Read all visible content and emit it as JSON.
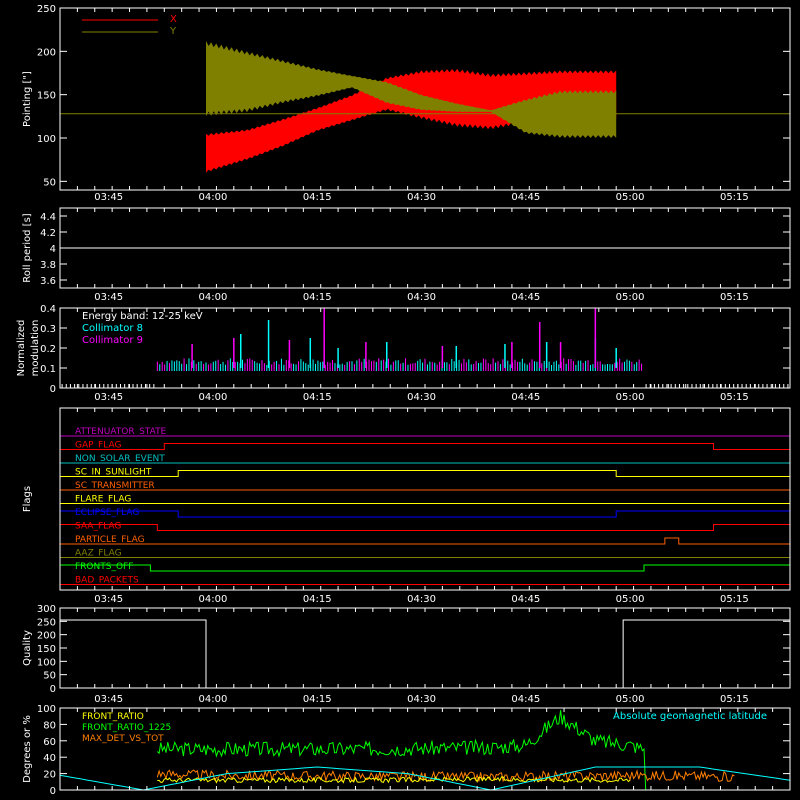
{
  "time_axis": {
    "start": "03:38",
    "end": "05:23",
    "tick_labels": [
      "03:45",
      "04:00",
      "04:15",
      "04:30",
      "04:45",
      "05:00",
      "05:15"
    ]
  },
  "chart_data": [
    {
      "id": "pointing",
      "type": "area",
      "ylabel": "Pointing [\"]",
      "ylim": [
        40,
        250
      ],
      "yticks": [
        50,
        100,
        150,
        200,
        250
      ],
      "legend": [
        {
          "name": "X",
          "color": "#ff0000"
        },
        {
          "name": "Y",
          "color": "#808000"
        }
      ],
      "series": [
        {
          "name": "X",
          "color": "#ff0000",
          "x": [
            "03:59",
            "04:05",
            "04:10",
            "04:15",
            "04:20",
            "04:25",
            "04:30",
            "04:35",
            "04:40",
            "04:45",
            "04:50",
            "04:58"
          ],
          "upper": [
            105,
            110,
            122,
            135,
            150,
            170,
            178,
            180,
            174,
            176,
            178,
            178
          ],
          "lower": [
            60,
            75,
            90,
            108,
            120,
            132,
            122,
            113,
            110,
            117,
            122,
            122
          ]
        },
        {
          "name": "Y",
          "color": "#808000",
          "x": [
            "03:59",
            "04:05",
            "04:10",
            "04:15",
            "04:20",
            "04:25",
            "04:30",
            "04:35",
            "04:40",
            "04:45",
            "04:50",
            "04:58"
          ],
          "upper": [
            212,
            200,
            190,
            180,
            172,
            165,
            150,
            140,
            132,
            145,
            155,
            155
          ],
          "lower": [
            125,
            130,
            140,
            148,
            158,
            140,
            132,
            130,
            130,
            105,
            100,
            100
          ]
        }
      ],
      "reference_line": {
        "y": 128,
        "color": "#808000"
      }
    },
    {
      "id": "roll-period",
      "type": "line",
      "ylabel": "Roll period [s]",
      "ylim": [
        3.5,
        4.5
      ],
      "yticks": [
        3.6,
        3.8,
        4.0,
        4.2,
        4.4
      ],
      "series": [
        {
          "name": "",
          "color": "#ffffff",
          "x": [
            "03:38",
            "05:23"
          ],
          "values": [
            4.0,
            4.0
          ]
        }
      ]
    },
    {
      "id": "modulation",
      "type": "line",
      "ylabel_lines": [
        "Normalized",
        "modulation"
      ],
      "ylim": [
        0.0,
        0.4
      ],
      "yticks": [
        0.0,
        0.1,
        0.2,
        0.3,
        0.4
      ],
      "annotations": [
        "Energy band: 12-25 keV"
      ],
      "legend": [
        {
          "name": "Collimator 8",
          "color": "#00ffff"
        },
        {
          "name": "Collimator 9",
          "color": "#ff00ff"
        }
      ],
      "data_span": [
        "03:52",
        "05:02"
      ],
      "baseline": 0.1,
      "spikes": [
        {
          "series": "Collimator 8",
          "x": [
            "04:04",
            "04:08",
            "04:14",
            "04:18",
            "04:25",
            "04:35",
            "04:42",
            "04:48",
            "04:55",
            "04:58"
          ],
          "values": [
            0.27,
            0.34,
            0.25,
            0.2,
            0.23,
            0.21,
            0.22,
            0.23,
            0.25,
            0.2
          ]
        },
        {
          "series": "Collimator 9",
          "x": [
            "03:57",
            "04:03",
            "04:11",
            "04:16",
            "04:22",
            "04:33",
            "04:43",
            "04:47",
            "04:50",
            "04:55"
          ],
          "values": [
            0.22,
            0.25,
            0.24,
            0.4,
            0.23,
            0.21,
            0.23,
            0.33,
            0.23,
            0.4
          ]
        }
      ]
    },
    {
      "id": "flags",
      "type": "line",
      "ylabel": "Flags",
      "flags": [
        {
          "name": "ATTENUATOR_STATE",
          "color": "#c000c0",
          "changes": []
        },
        {
          "name": "GAP_FLAG",
          "color": "#ff0000",
          "changes": [
            [
              "03:53",
              "05:12",
              "high"
            ]
          ]
        },
        {
          "name": "NON_SOLAR_EVENT",
          "color": "#00c0c0",
          "changes": []
        },
        {
          "name": "SC_IN_SUNLIGHT",
          "color": "#ffff00",
          "changes": [
            [
              "03:55",
              "04:58",
              "high"
            ]
          ]
        },
        {
          "name": "SC_TRANSMITTER",
          "color": "#ff6000",
          "changes": []
        },
        {
          "name": "FLARE_FLAG",
          "color": "#ffff00",
          "changes": []
        },
        {
          "name": "ECLIPSE_FLAG",
          "color": "#0000ff",
          "changes": [
            [
              "03:38",
              "03:55",
              "high"
            ],
            [
              "04:58",
              "05:23",
              "high"
            ]
          ]
        },
        {
          "name": "SAA_FLAG",
          "color": "#ff0000",
          "changes": [
            [
              "03:38",
              "03:52",
              "high"
            ],
            [
              "05:12",
              "05:23",
              "high"
            ]
          ]
        },
        {
          "name": "PARTICLE_FLAG",
          "color": "#ff6000",
          "changes": [
            [
              "05:05",
              "05:07",
              "high"
            ]
          ]
        },
        {
          "name": "AAZ_FLAG",
          "color": "#808000",
          "changes": []
        },
        {
          "name": "FRONTS_OFF",
          "color": "#00ff00",
          "changes": [
            [
              "03:38",
              "03:51",
              "high"
            ],
            [
              "05:02",
              "05:23",
              "high"
            ]
          ]
        },
        {
          "name": "BAD_PACKETS",
          "color": "#ff0000",
          "changes": []
        }
      ]
    },
    {
      "id": "quality",
      "type": "line",
      "ylabel": "Quality",
      "ylim": [
        0,
        300
      ],
      "yticks": [
        0,
        50,
        100,
        150,
        200,
        250,
        300
      ],
      "series": [
        {
          "name": "",
          "color": "#ffffff",
          "x": [
            "03:38",
            "03:59",
            "03:59",
            "04:59",
            "04:59",
            "05:23"
          ],
          "values": [
            255,
            255,
            0,
            0,
            255,
            255
          ]
        }
      ]
    },
    {
      "id": "ratios",
      "type": "line",
      "ylabel": "Degrees or %",
      "ylim": [
        0,
        100
      ],
      "yticks": [
        0,
        20,
        40,
        60,
        80,
        100
      ],
      "legend": [
        {
          "name": "FRONT_RATIO",
          "color": "#ffff00"
        },
        {
          "name": "FRONT_RATIO_1225",
          "color": "#00ff00"
        },
        {
          "name": "MAX_DET_VS_TOT",
          "color": "#ff8000"
        }
      ],
      "right_legend": {
        "name": "Absolute geomagnetic latitude",
        "color": "#00ffff"
      },
      "series": [
        {
          "name": "FRONT_RATIO_1225",
          "color": "#00ff00",
          "x": [
            "03:52",
            "04:00",
            "04:20",
            "04:40",
            "04:45",
            "04:50",
            "04:55",
            "05:00",
            "05:02",
            "05:02",
            "05:23"
          ],
          "values": [
            50,
            50,
            50,
            52,
            55,
            90,
            60,
            55,
            50,
            0,
            0
          ]
        },
        {
          "name": "MAX_DET_VS_TOT",
          "color": "#ff8000",
          "x": [
            "03:52",
            "04:00",
            "04:20",
            "04:40",
            "05:00",
            "05:10",
            "05:15"
          ],
          "values": [
            20,
            18,
            17,
            16,
            18,
            17,
            16
          ]
        },
        {
          "name": "FRONT_RATIO",
          "color": "#ffff00",
          "x": [
            "03:52",
            "04:00",
            "04:20",
            "04:40",
            "05:00"
          ],
          "values": [
            12,
            12,
            12,
            13,
            12
          ]
        },
        {
          "name": "Absolute geomagnetic latitude",
          "color": "#00ffff",
          "x": [
            "03:38",
            "03:50",
            "04:02",
            "04:15",
            "04:28",
            "04:40",
            "04:55",
            "05:10",
            "05:23"
          ],
          "values": [
            18,
            0,
            20,
            28,
            20,
            0,
            28,
            28,
            12
          ]
        }
      ]
    }
  ]
}
